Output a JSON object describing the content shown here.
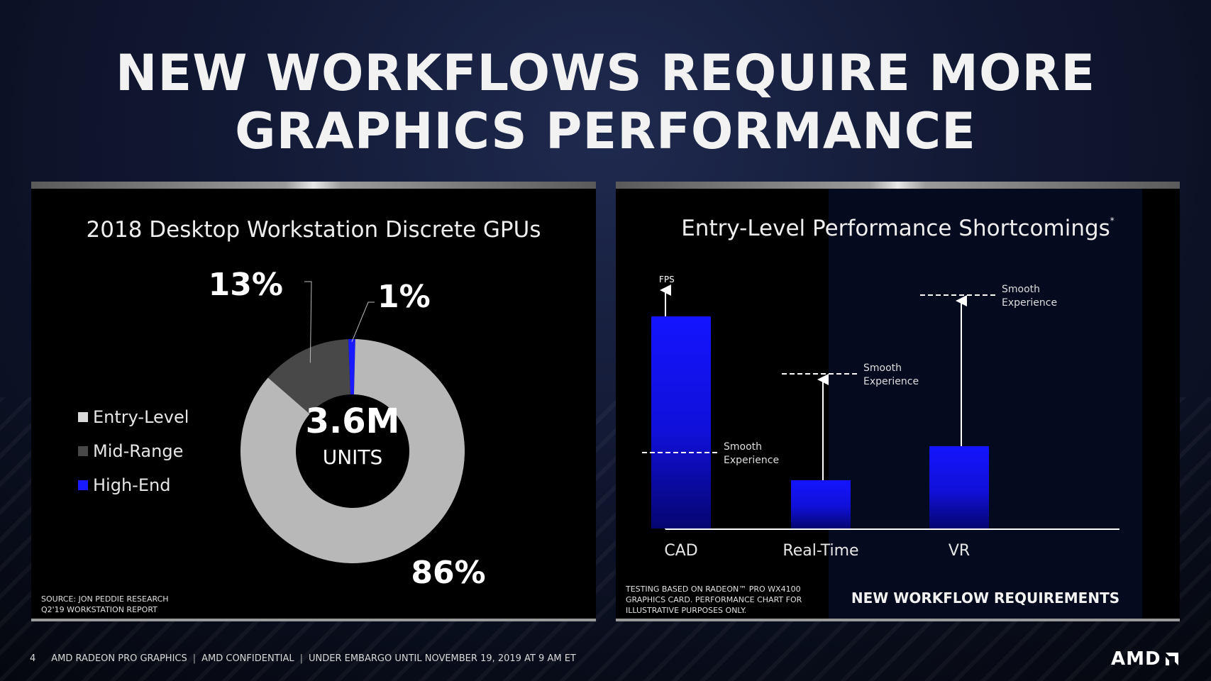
{
  "slide": {
    "title_line1": "NEW WORKFLOWS REQUIRE MORE",
    "title_line2": "GRAPHICS PERFORMANCE"
  },
  "left_panel": {
    "title": "2018 Desktop Workstation Discrete GPUs",
    "center_value": "3.6M",
    "center_unit": "UNITS",
    "source_line1": "SOURCE: JON PEDDIE RESEARCH",
    "source_line2": "Q2'19 WORKSTATION REPORT"
  },
  "right_panel": {
    "title": "Entry-Level Performance Shortcomings",
    "title_mark": "*",
    "disclaimer_line1": "TESTING BASED ON RADEON™ PRO WX4100",
    "disclaimer_line2": "GRAPHICS CARD. PERFORMANCE CHART FOR",
    "disclaimer_line3": "ILLUSTRATIVE PURPOSES ONLY.",
    "requirements_label": "NEW WORKFLOW REQUIREMENTS"
  },
  "chart_data": [
    {
      "type": "pie",
      "title": "2018 Desktop Workstation Discrete GPUs",
      "categories": [
        "Entry-Level",
        "Mid-Range",
        "High-End"
      ],
      "values": [
        86,
        13,
        1
      ],
      "labels": [
        "86%",
        "13%",
        "1%"
      ],
      "colors": [
        "#b8b8b8",
        "#484848",
        "#1a1aff"
      ],
      "legend": "left",
      "center_text": "3.6M UNITS"
    },
    {
      "type": "bar",
      "title": "Entry-Level Performance Shortcomings",
      "ylabel": "FPS",
      "categories": [
        "CAD",
        "Real-Time",
        "VR"
      ],
      "values": [
        100,
        23,
        39
      ],
      "smooth_experience_threshold": [
        36,
        73,
        110
      ],
      "threshold_label_line1": "Smooth",
      "threshold_label_line2": "Experience",
      "ylim": [
        0,
        110
      ],
      "color": "#1a1aff"
    }
  ],
  "footer": {
    "page": "4",
    "items": [
      "AMD RADEON PRO GRAPHICS",
      "AMD CONFIDENTIAL",
      "UNDER EMBARGO UNTIL NOVEMBER 19, 2019 AT 9 AM ET"
    ],
    "logo": "AMD"
  }
}
